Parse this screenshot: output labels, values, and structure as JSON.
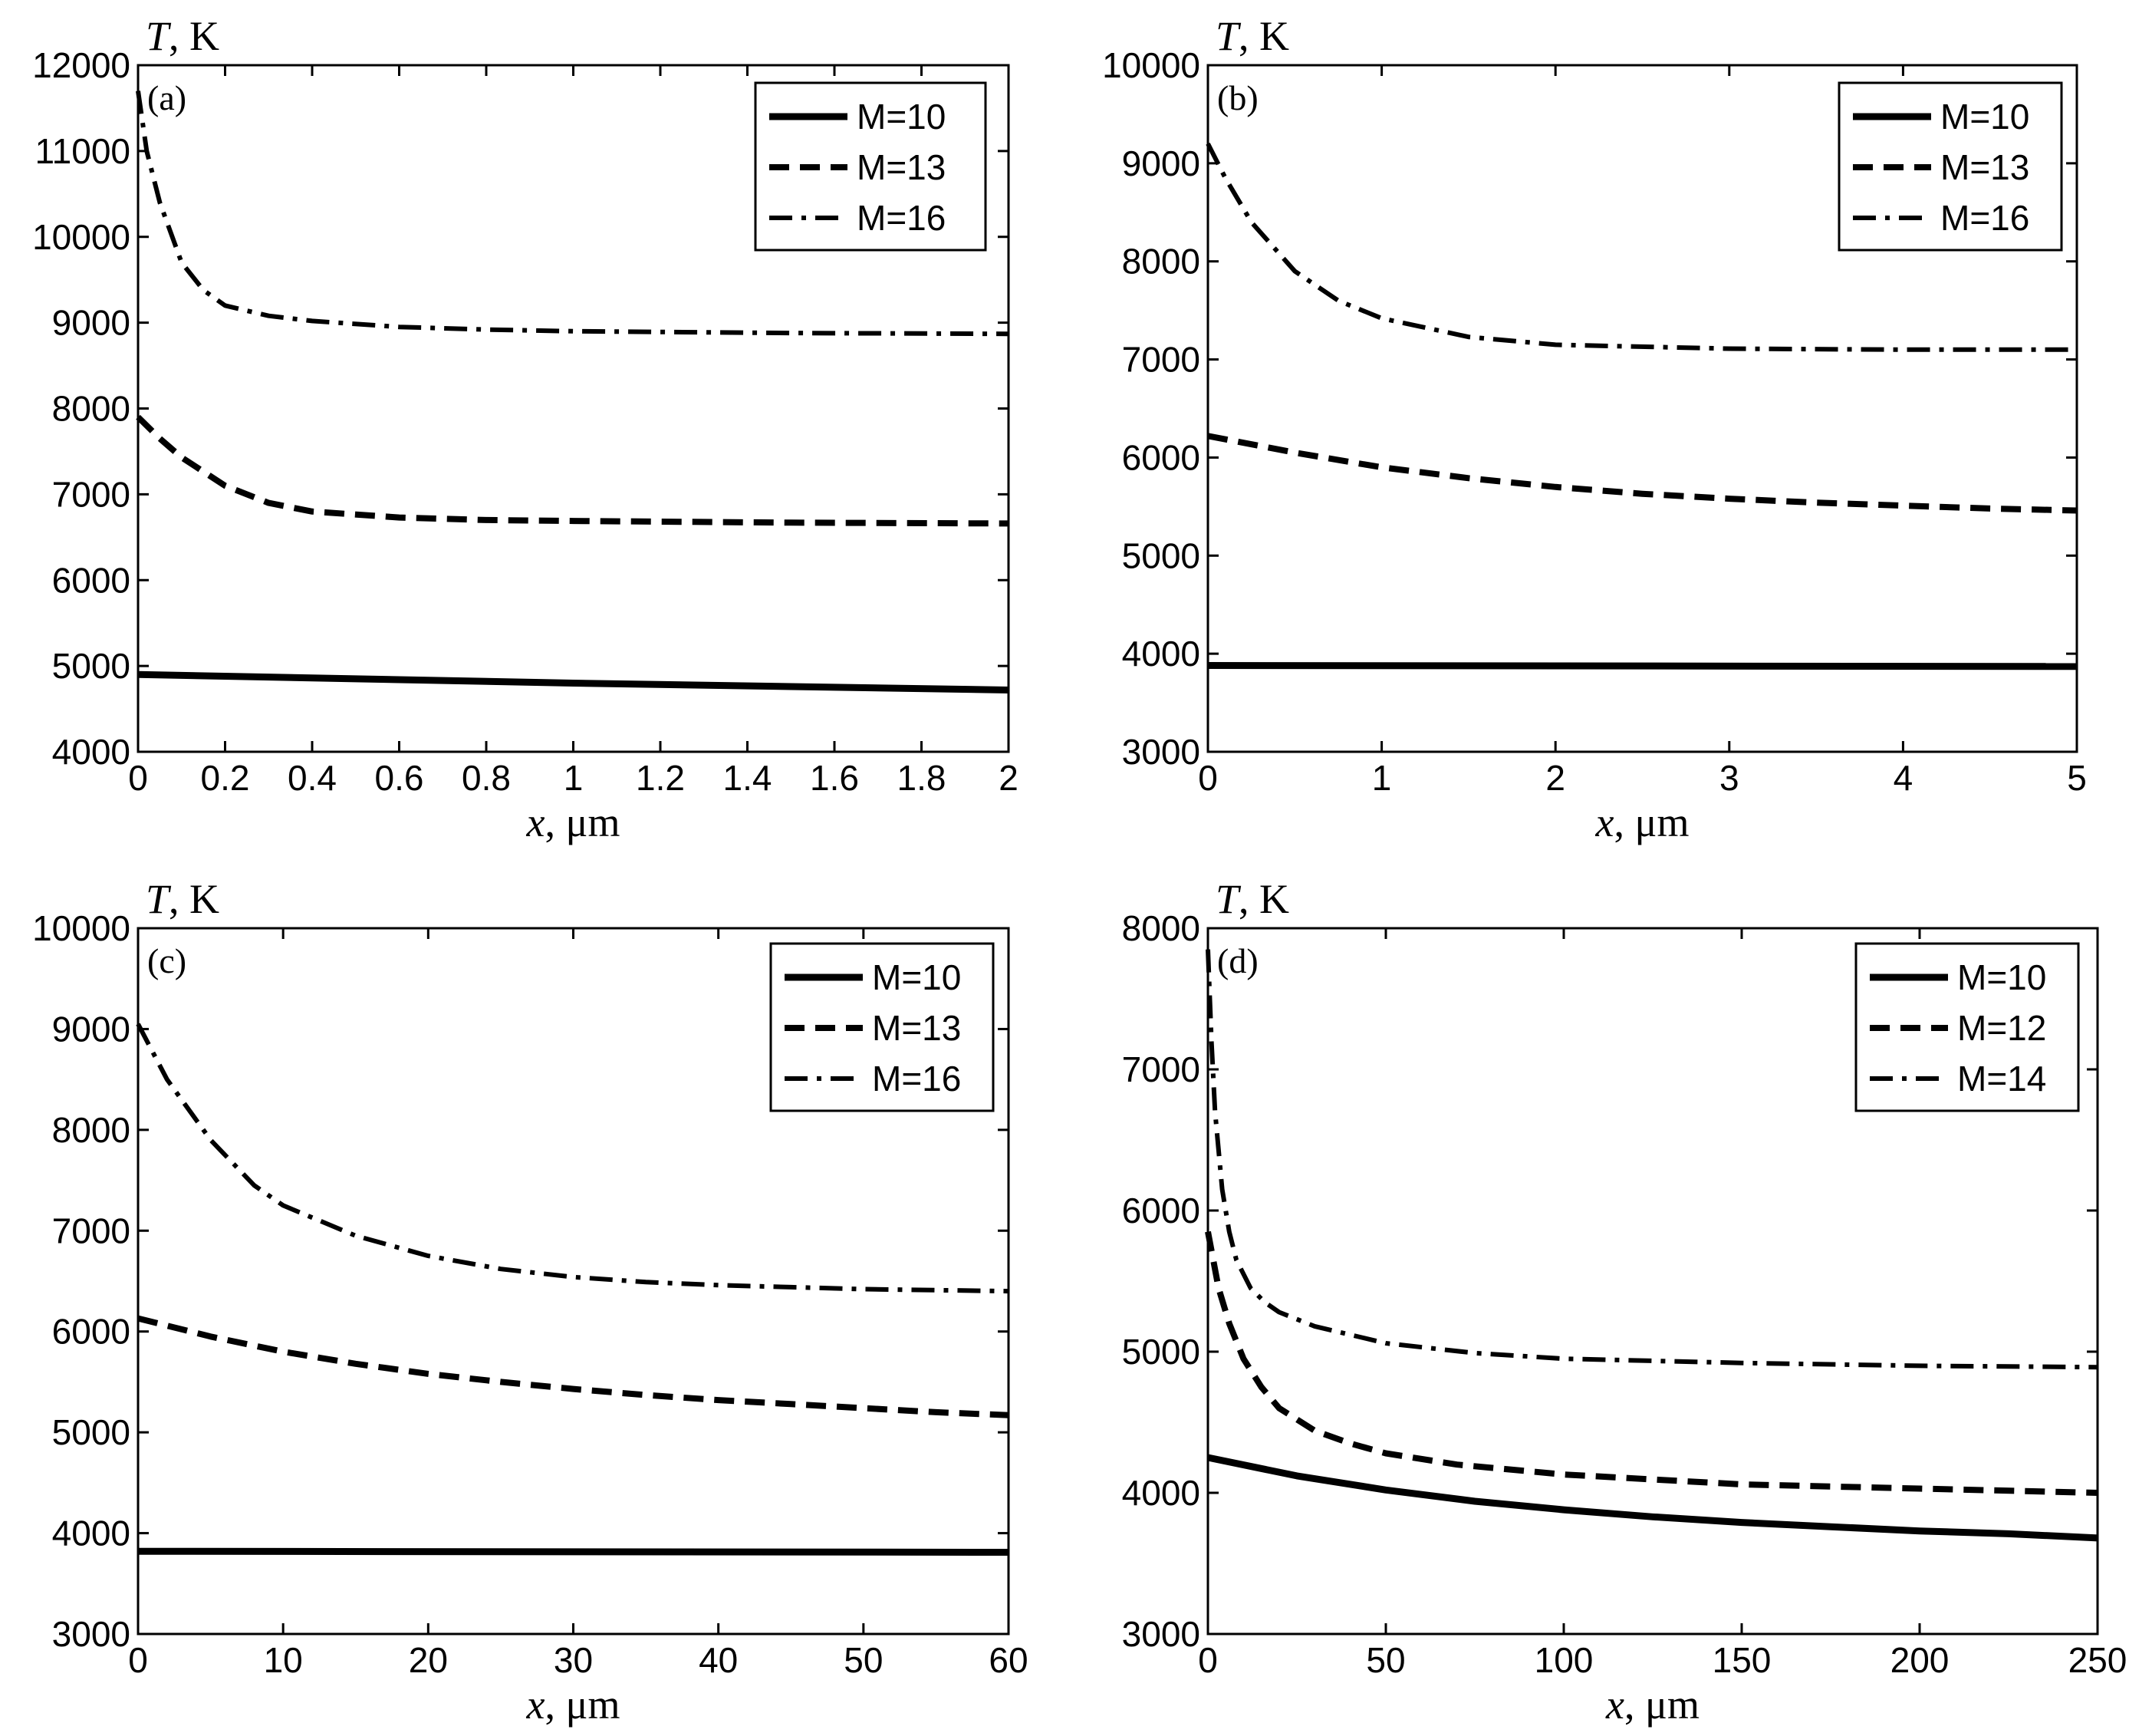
{
  "chart_data": [
    {
      "type": "line",
      "panel": "(a)",
      "xlabel_var": "x",
      "xlabel_unit": ", μm",
      "ylabel_var": "T",
      "ylabel_unit": ", K",
      "xlim": [
        0,
        2
      ],
      "ylim": [
        4000,
        12000
      ],
      "xticks": [
        0,
        0.2,
        0.4,
        0.6,
        0.8,
        1,
        1.2,
        1.4,
        1.6,
        1.8,
        2
      ],
      "xtick_labels": [
        "0",
        "0.2",
        "0.4",
        "0.6",
        "0.8",
        "1",
        "1.2",
        "1.4",
        "1.6",
        "1.8",
        "2"
      ],
      "yticks": [
        4000,
        5000,
        6000,
        7000,
        8000,
        9000,
        10000,
        11000,
        12000
      ],
      "ytick_labels": [
        "4000",
        "5000",
        "6000",
        "7000",
        "8000",
        "9000",
        "10000",
        "11000",
        "12000"
      ],
      "legend_position": "top-right",
      "series": [
        {
          "name": "M=10",
          "style": "solid",
          "x": [
            0,
            0.5,
            1,
            1.5,
            2
          ],
          "values": [
            4900,
            4850,
            4800,
            4760,
            4720
          ]
        },
        {
          "name": "M=13",
          "style": "dashed",
          "x": [
            0,
            0.05,
            0.1,
            0.2,
            0.3,
            0.4,
            0.6,
            0.8,
            1.0,
            1.5,
            2.0
          ],
          "values": [
            7900,
            7650,
            7430,
            7100,
            6900,
            6800,
            6730,
            6700,
            6690,
            6670,
            6660
          ]
        },
        {
          "name": "M=16",
          "style": "dashdot",
          "x": [
            0,
            0.02,
            0.05,
            0.1,
            0.15,
            0.2,
            0.3,
            0.4,
            0.6,
            0.8,
            1.0,
            1.5,
            2.0
          ],
          "values": [
            11700,
            11000,
            10400,
            9700,
            9380,
            9200,
            9080,
            9020,
            8950,
            8920,
            8900,
            8880,
            8870
          ]
        }
      ]
    },
    {
      "type": "line",
      "panel": "(b)",
      "xlabel_var": "x",
      "xlabel_unit": ", μm",
      "ylabel_var": "T",
      "ylabel_unit": ", K",
      "xlim": [
        0,
        5
      ],
      "ylim": [
        3000,
        10000
      ],
      "xticks": [
        0,
        1,
        2,
        3,
        4,
        5
      ],
      "xtick_labels": [
        "0",
        "1",
        "2",
        "3",
        "4",
        "5"
      ],
      "yticks": [
        3000,
        4000,
        5000,
        6000,
        7000,
        8000,
        9000,
        10000
      ],
      "ytick_labels": [
        "3000",
        "4000",
        "5000",
        "6000",
        "7000",
        "8000",
        "9000",
        "10000"
      ],
      "legend_position": "top-right",
      "series": [
        {
          "name": "M=10",
          "style": "solid",
          "x": [
            0,
            5
          ],
          "values": [
            3880,
            3870
          ]
        },
        {
          "name": "M=13",
          "style": "dashed",
          "x": [
            0,
            0.5,
            1,
            1.5,
            2,
            2.5,
            3,
            3.5,
            4,
            4.5,
            5
          ],
          "values": [
            6220,
            6050,
            5900,
            5790,
            5700,
            5630,
            5580,
            5540,
            5510,
            5480,
            5460
          ]
        },
        {
          "name": "M=16",
          "style": "dashdot",
          "x": [
            0,
            0.1,
            0.25,
            0.5,
            0.75,
            1.0,
            1.5,
            2.0,
            3.0,
            4.0,
            5.0
          ],
          "values": [
            9200,
            8850,
            8400,
            7900,
            7600,
            7420,
            7230,
            7150,
            7110,
            7100,
            7100
          ]
        }
      ]
    },
    {
      "type": "line",
      "panel": "(c)",
      "xlabel_var": "x",
      "xlabel_unit": ", μm",
      "ylabel_var": "T",
      "ylabel_unit": ", K",
      "xlim": [
        0,
        60
      ],
      "ylim": [
        3000,
        10000
      ],
      "xticks": [
        0,
        10,
        20,
        30,
        40,
        50,
        60
      ],
      "xtick_labels": [
        "0",
        "10",
        "20",
        "30",
        "40",
        "50",
        "60"
      ],
      "yticks": [
        3000,
        4000,
        5000,
        6000,
        7000,
        8000,
        9000,
        10000
      ],
      "ytick_labels": [
        "3000",
        "4000",
        "5000",
        "6000",
        "7000",
        "8000",
        "9000",
        "10000"
      ],
      "legend_position": "top-right",
      "series": [
        {
          "name": "M=10",
          "style": "solid",
          "x": [
            0,
            60
          ],
          "values": [
            3820,
            3810
          ]
        },
        {
          "name": "M=13",
          "style": "dashed",
          "x": [
            0,
            5,
            10,
            15,
            20,
            25,
            30,
            35,
            40,
            45,
            50,
            55,
            60
          ],
          "values": [
            6130,
            5950,
            5800,
            5680,
            5580,
            5500,
            5430,
            5370,
            5320,
            5280,
            5240,
            5200,
            5170
          ]
        },
        {
          "name": "M=16",
          "style": "dashdot",
          "x": [
            0,
            2,
            5,
            8,
            10,
            15,
            20,
            25,
            30,
            35,
            40,
            45,
            50,
            55,
            60
          ],
          "values": [
            9050,
            8500,
            7900,
            7450,
            7250,
            6950,
            6750,
            6620,
            6540,
            6490,
            6460,
            6440,
            6420,
            6410,
            6400
          ]
        }
      ]
    },
    {
      "type": "line",
      "panel": "(d)",
      "xlabel_var": "x",
      "xlabel_unit": ", μm",
      "ylabel_var": "T",
      "ylabel_unit": ", K",
      "xlim": [
        0,
        250
      ],
      "ylim": [
        3000,
        8000
      ],
      "xticks": [
        0,
        50,
        100,
        150,
        200,
        250
      ],
      "xtick_labels": [
        "0",
        "50",
        "100",
        "150",
        "200",
        "250"
      ],
      "yticks": [
        3000,
        4000,
        5000,
        6000,
        7000,
        8000
      ],
      "ytick_labels": [
        "3000",
        "4000",
        "5000",
        "6000",
        "7000",
        "8000"
      ],
      "legend_position": "top-right",
      "series": [
        {
          "name": "M=10",
          "style": "solid",
          "x": [
            0,
            25,
            50,
            75,
            100,
            125,
            150,
            175,
            200,
            225,
            250
          ],
          "values": [
            4250,
            4120,
            4020,
            3940,
            3880,
            3830,
            3790,
            3760,
            3730,
            3710,
            3680
          ]
        },
        {
          "name": "M=12",
          "style": "dashed",
          "x": [
            0,
            3,
            6,
            10,
            15,
            20,
            30,
            40,
            50,
            70,
            100,
            150,
            200,
            250
          ],
          "values": [
            5850,
            5450,
            5200,
            4950,
            4750,
            4600,
            4440,
            4350,
            4280,
            4200,
            4130,
            4060,
            4030,
            4000
          ]
        },
        {
          "name": "M=14",
          "style": "dashdot",
          "x": [
            0,
            1,
            2,
            4,
            6,
            8,
            12,
            16,
            20,
            30,
            50,
            75,
            100,
            150,
            200,
            250
          ],
          "values": [
            7850,
            7200,
            6700,
            6150,
            5850,
            5650,
            5450,
            5350,
            5280,
            5180,
            5060,
            4990,
            4950,
            4920,
            4900,
            4890
          ]
        }
      ]
    }
  ]
}
